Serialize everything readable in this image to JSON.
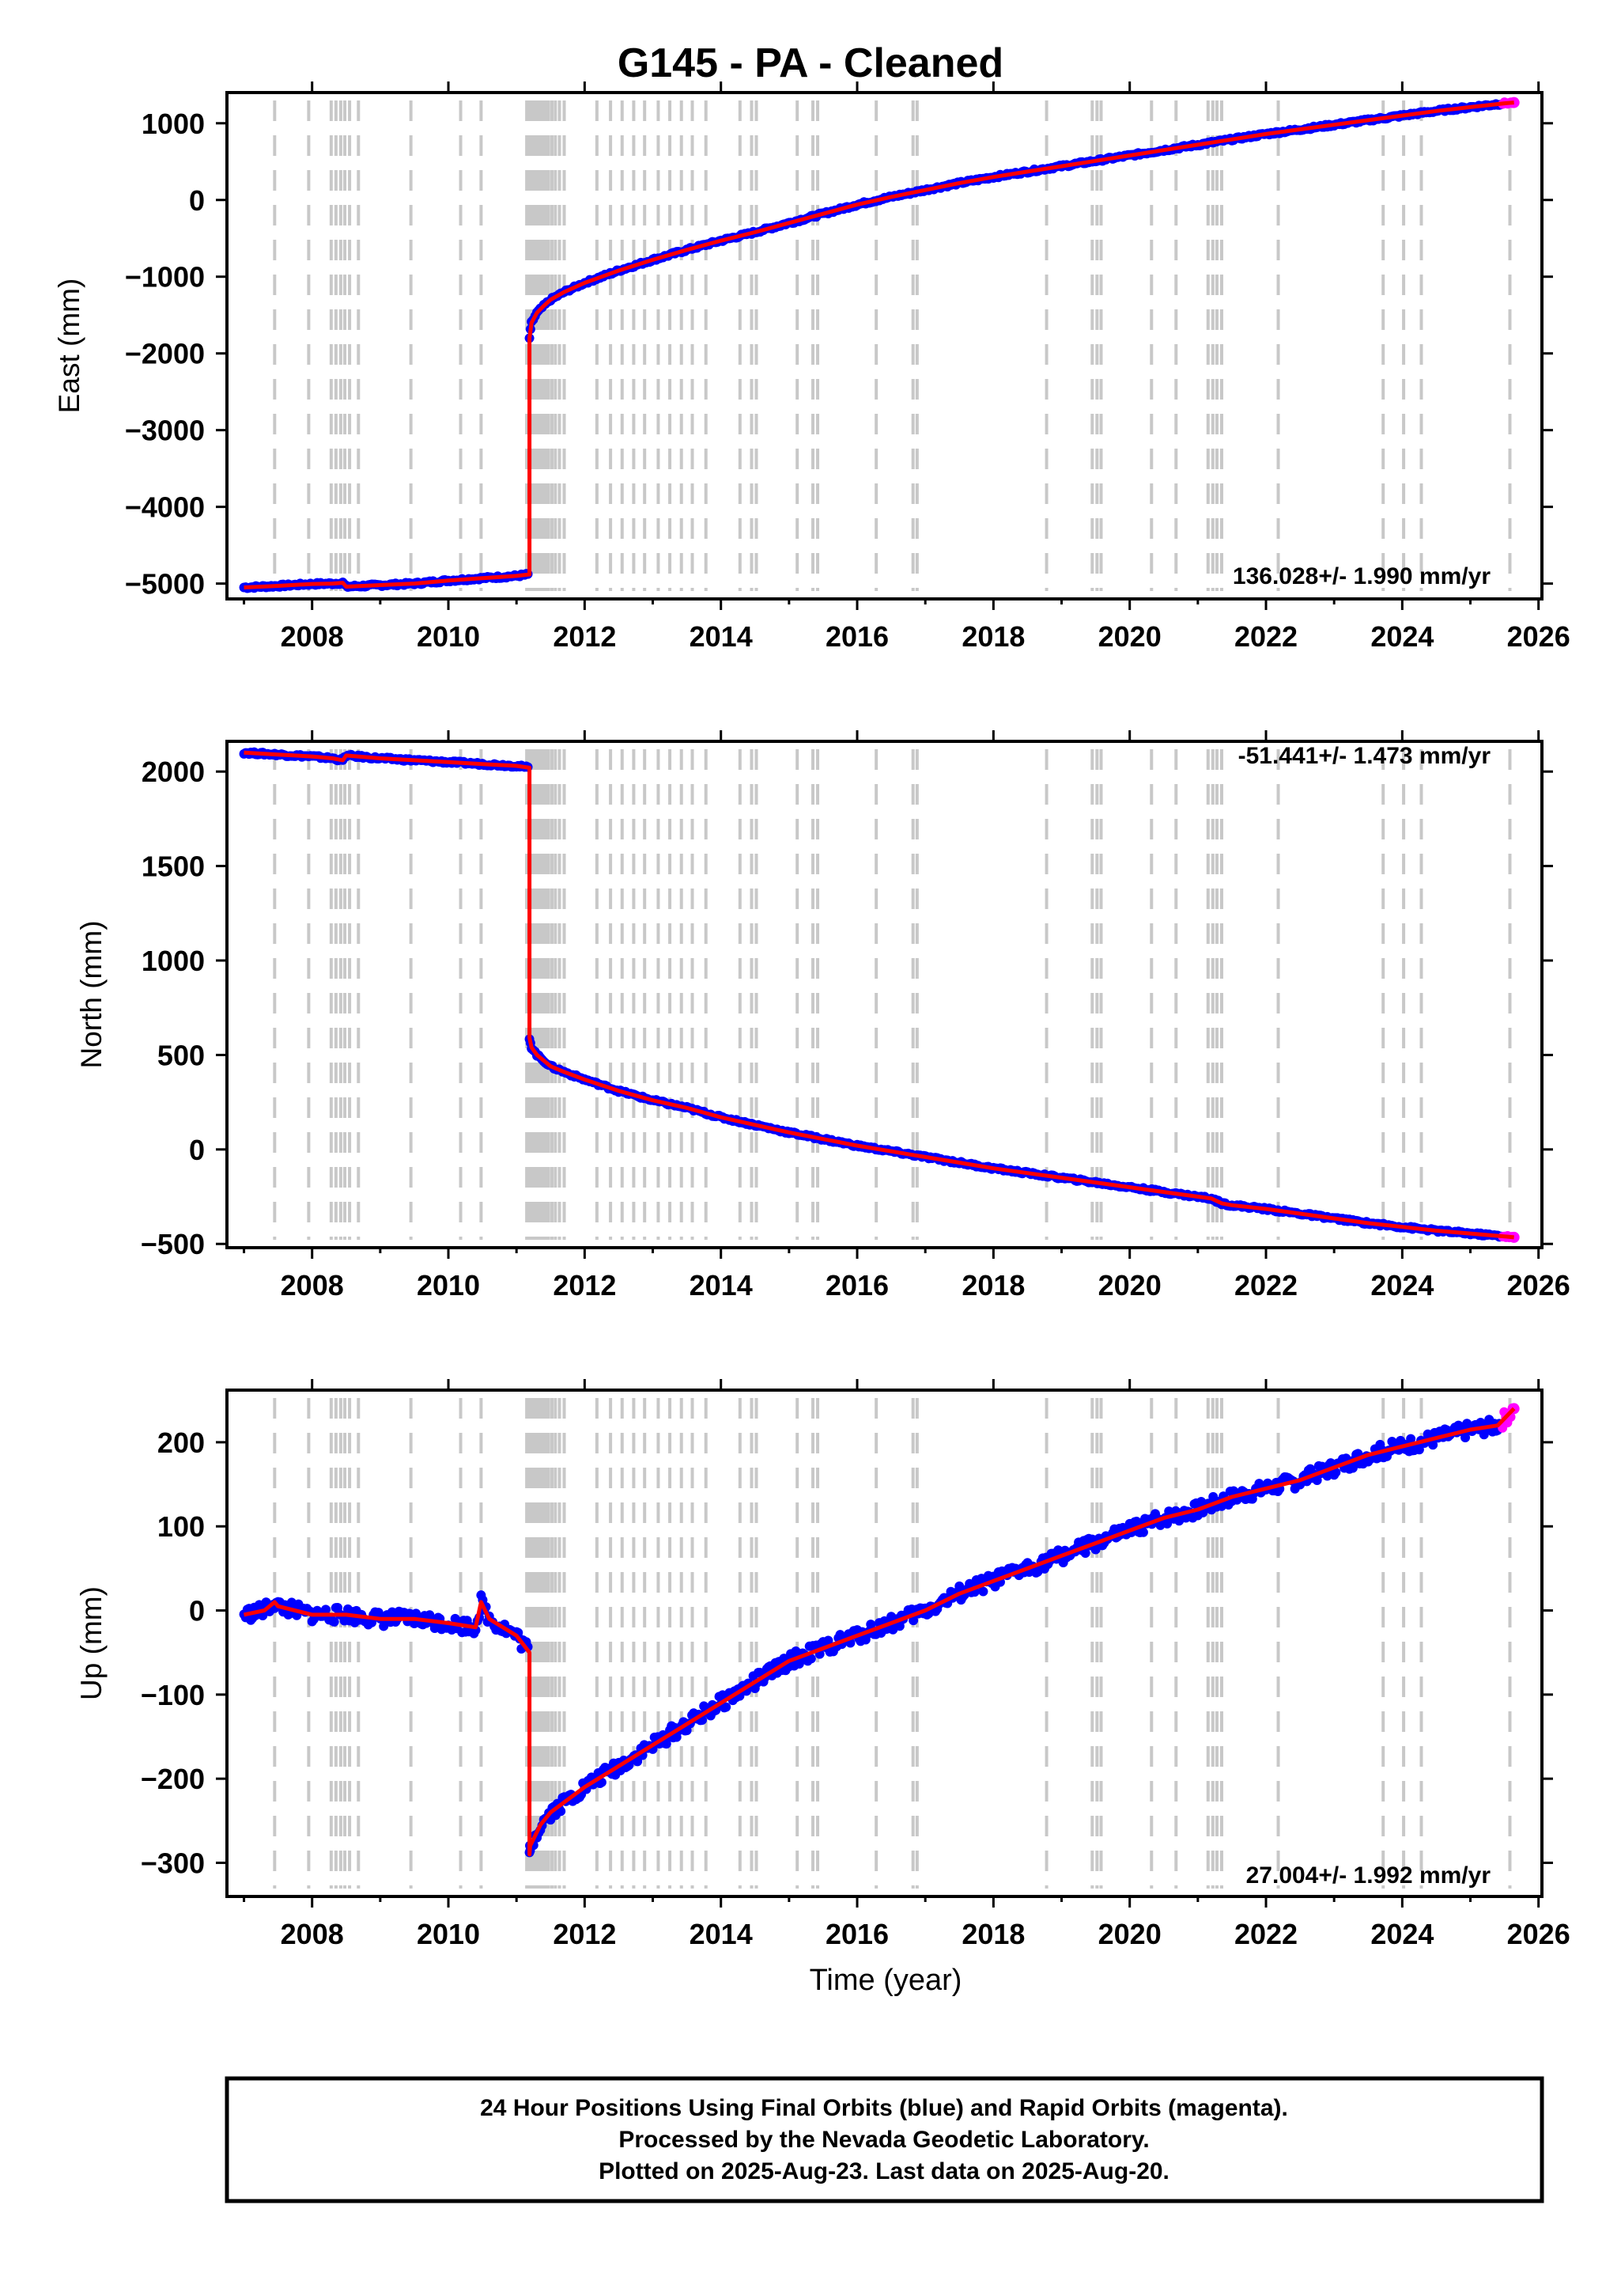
{
  "title": "G145  - PA - Cleaned",
  "colors": {
    "final_orbits": "#0000ff",
    "rapid_orbits": "#ff00ff",
    "model": "#ff0000",
    "event_lines": "#c8c8c8",
    "frame": "#000000"
  },
  "event_lines_years": [
    2007.45,
    2007.95,
    2008.28,
    2008.35,
    2008.42,
    2008.48,
    2008.55,
    2008.68,
    2009.45,
    2010.18,
    2010.48,
    2011.15,
    2011.19,
    2011.23,
    2011.27,
    2011.31,
    2011.35,
    2011.39,
    2011.43,
    2011.47,
    2011.52,
    2011.57,
    2011.63,
    2011.7,
    2012.18,
    2012.38,
    2012.55,
    2012.72,
    2012.88,
    2013.08,
    2013.25,
    2013.42,
    2013.58,
    2013.78,
    2014.28,
    2014.45,
    2014.52,
    2015.12,
    2015.35,
    2015.42,
    2016.28,
    2016.82,
    2016.88,
    2018.78,
    2019.45,
    2019.52,
    2019.58,
    2020.32,
    2020.68,
    2021.15,
    2021.22,
    2021.28,
    2021.35,
    2022.18,
    2023.72,
    2024.02,
    2024.28,
    2025.58
  ],
  "chart_data": [
    {
      "type": "scatter",
      "panel": "east",
      "ylabel": "East (mm)",
      "xlim": [
        2006.75,
        2026.05
      ],
      "ylim": [
        -5200,
        1400
      ],
      "xticks": [
        "2008",
        "2010",
        "2012",
        "2014",
        "2016",
        "2018",
        "2020",
        "2022",
        "2024",
        "2026"
      ],
      "yticks": [
        "1000",
        "0",
        "−1000",
        "−2000",
        "−3000",
        "−4000",
        "−5000"
      ],
      "rate_label": "136.028+/- 1.990 mm/yr",
      "series": [
        {
          "x": [
            2007.0,
            2007.5,
            2008.0,
            2008.3,
            2008.45,
            2008.5,
            2009.0,
            2009.5,
            2010.0,
            2010.5,
            2011.0,
            2011.19,
            2011.19,
            2011.22,
            2011.3,
            2011.4,
            2011.5,
            2011.7,
            2012.0,
            2012.5,
            2013.0,
            2013.5,
            2014.0,
            2014.5,
            2015.0,
            2015.5,
            2016.0,
            2016.5,
            2017.0,
            2017.5,
            2018.0,
            2018.5,
            2019.0,
            2019.5,
            2020.0,
            2020.5,
            2021.0,
            2021.5,
            2022.0,
            2022.5,
            2023.0,
            2023.5,
            2024.0,
            2024.5,
            2025.0,
            2025.5,
            2025.64
          ],
          "y": [
            -5050,
            -5030,
            -5005,
            -5000,
            -4990,
            -5040,
            -5020,
            -5000,
            -4960,
            -4930,
            -4900,
            -4880,
            -1800,
            -1600,
            -1470,
            -1380,
            -1300,
            -1200,
            -1080,
            -920,
            -780,
            -650,
            -530,
            -420,
            -300,
            -180,
            -60,
            40,
            130,
            220,
            300,
            370,
            440,
            510,
            580,
            650,
            720,
            790,
            860,
            920,
            980,
            1040,
            1100,
            1160,
            1210,
            1260,
            1270
          ]
        }
      ]
    },
    {
      "type": "scatter",
      "panel": "north",
      "ylabel": "North (mm)",
      "xlim": [
        2006.75,
        2026.05
      ],
      "ylim": [
        -520,
        2160
      ],
      "xticks": [
        "2008",
        "2010",
        "2012",
        "2014",
        "2016",
        "2018",
        "2020",
        "2022",
        "2024",
        "2026"
      ],
      "yticks": [
        "2000",
        "1500",
        "1000",
        "500",
        "0",
        "−500"
      ],
      "rate_label": "-51.441+/- 1.473 mm/yr",
      "series": [
        {
          "x": [
            2007.0,
            2007.5,
            2008.0,
            2008.3,
            2008.45,
            2008.5,
            2009.0,
            2009.5,
            2010.0,
            2010.5,
            2011.0,
            2011.19,
            2011.19,
            2011.22,
            2011.3,
            2011.4,
            2011.5,
            2011.7,
            2012.0,
            2012.5,
            2013.0,
            2013.5,
            2014.0,
            2014.5,
            2015.0,
            2015.5,
            2016.0,
            2016.5,
            2017.0,
            2017.5,
            2018.0,
            2018.5,
            2019.0,
            2019.5,
            2020.0,
            2020.5,
            2021.0,
            2021.2,
            2021.35,
            2021.5,
            2022.0,
            2022.5,
            2023.0,
            2023.5,
            2024.0,
            2024.5,
            2025.0,
            2025.5,
            2025.64
          ],
          "y": [
            2100,
            2090,
            2080,
            2070,
            2060,
            2085,
            2070,
            2060,
            2050,
            2040,
            2030,
            2020,
            590,
            540,
            500,
            470,
            440,
            410,
            370,
            310,
            260,
            220,
            170,
            130,
            90,
            55,
            20,
            -10,
            -40,
            -70,
            -100,
            -125,
            -150,
            -175,
            -200,
            -225,
            -250,
            -260,
            -285,
            -295,
            -315,
            -340,
            -365,
            -390,
            -410,
            -430,
            -445,
            -460,
            -465
          ]
        }
      ]
    },
    {
      "type": "scatter",
      "panel": "up",
      "ylabel": "Up (mm)",
      "xlabel": "Time (year)",
      "xlim": [
        2006.75,
        2026.05
      ],
      "ylim": [
        -340,
        262
      ],
      "xticks": [
        "2008",
        "2010",
        "2012",
        "2014",
        "2016",
        "2018",
        "2020",
        "2022",
        "2024",
        "2026"
      ],
      "yticks": [
        "200",
        "100",
        "0",
        "−100",
        "−200",
        "−300"
      ],
      "rate_label": "27.004+/- 1.992 mm/yr",
      "series": [
        {
          "x": [
            2007.0,
            2007.3,
            2007.45,
            2007.5,
            2008.0,
            2008.3,
            2008.5,
            2009.0,
            2009.5,
            2010.0,
            2010.4,
            2010.48,
            2010.6,
            2011.0,
            2011.19,
            2011.19,
            2011.2,
            2011.35,
            2011.5,
            2012.0,
            2012.5,
            2013.0,
            2013.5,
            2014.0,
            2014.5,
            2015.0,
            2015.5,
            2016.0,
            2016.5,
            2017.0,
            2017.5,
            2018.0,
            2018.5,
            2019.0,
            2019.5,
            2020.0,
            2020.5,
            2021.0,
            2021.5,
            2022.0,
            2022.5,
            2023.0,
            2023.5,
            2024.0,
            2024.5,
            2025.0,
            2025.4,
            2025.64
          ],
          "y": [
            -5,
            0,
            10,
            5,
            -5,
            -5,
            -5,
            -10,
            -10,
            -15,
            -20,
            10,
            -10,
            -30,
            -50,
            -290,
            -280,
            -255,
            -240,
            -210,
            -185,
            -160,
            -135,
            -110,
            -85,
            -60,
            -45,
            -30,
            -15,
            0,
            20,
            35,
            50,
            65,
            80,
            95,
            110,
            120,
            135,
            145,
            155,
            170,
            185,
            195,
            205,
            215,
            220,
            240
          ]
        }
      ]
    }
  ],
  "footer": {
    "line1": "24 Hour Positions Using Final Orbits (blue) and Rapid Orbits (magenta).",
    "line2": "Processed by the Nevada Geodetic Laboratory.",
    "line3": "Plotted on 2025-Aug-23. Last data on 2025-Aug-20."
  }
}
